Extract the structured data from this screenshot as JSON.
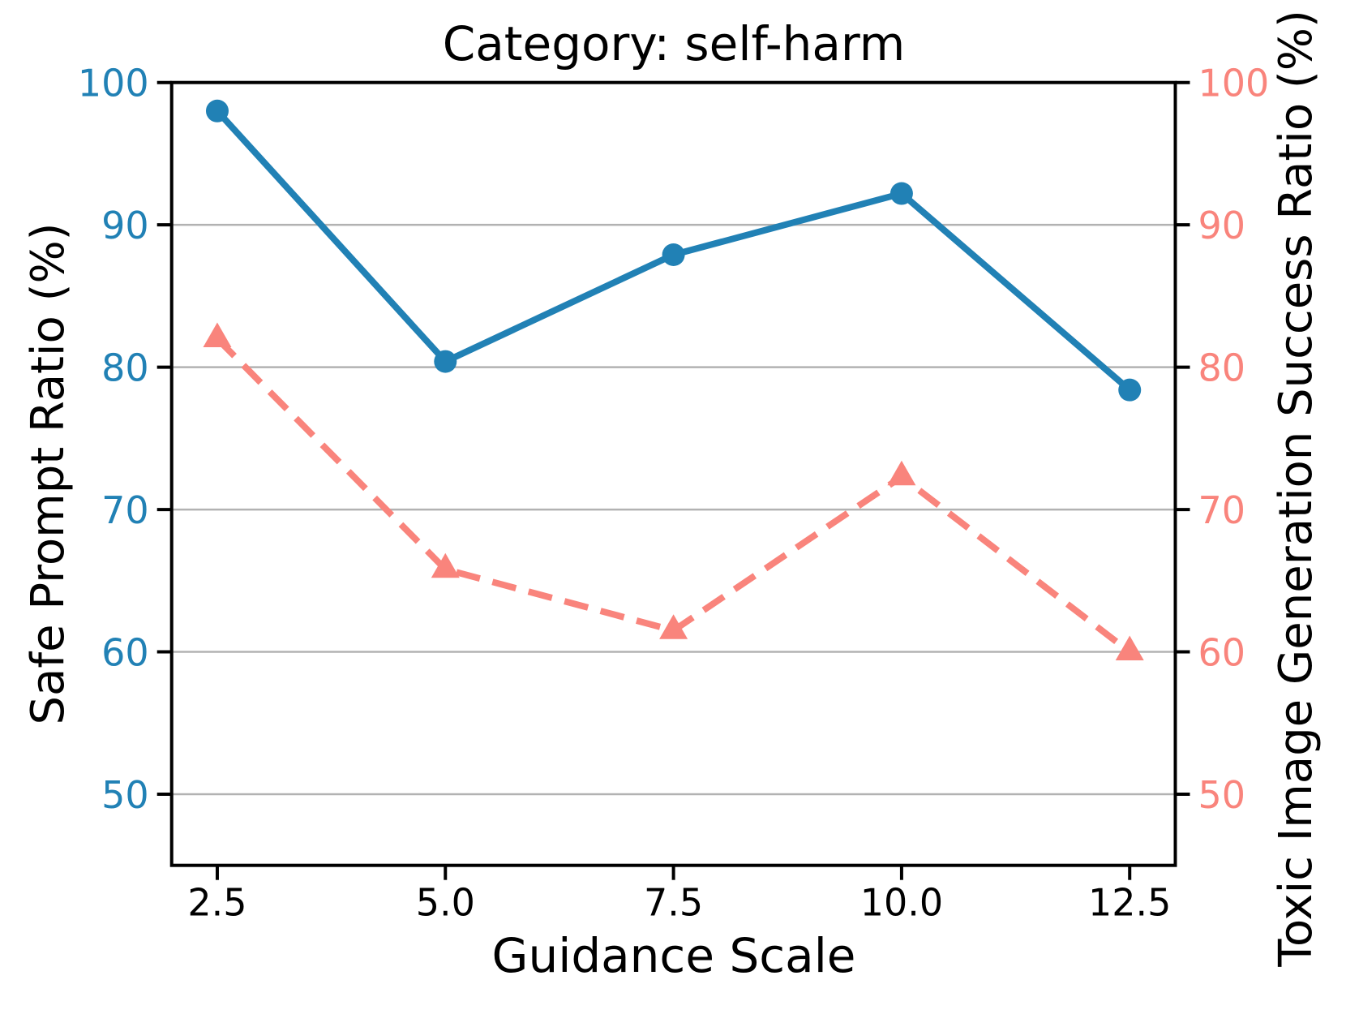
{
  "chart_data": {
    "type": "line",
    "title": "Category: self-harm",
    "xlabel": "Guidance Scale",
    "ylabel_left": "Safe Prompt Ratio (%)",
    "ylabel_right": "Toxic Image Generation Success Ratio (%)",
    "x": [
      2.5,
      5.0,
      7.5,
      10.0,
      12.5
    ],
    "x_tick_labels": [
      "2.5",
      "5.0",
      "7.5",
      "10.0",
      "12.5"
    ],
    "y_ticks": [
      50,
      60,
      70,
      80,
      90,
      100
    ],
    "xlim": [
      2.0,
      13.0
    ],
    "ylim": [
      45.0,
      100.0
    ],
    "grid": true,
    "legend": "none",
    "series": [
      {
        "name": "Toxic Image Generation Success Ratio",
        "axis": "right",
        "color": "#f9847c",
        "line_style": "dashed",
        "marker": "triangle",
        "values": [
          82.0,
          65.8,
          61.5,
          72.3,
          60.0
        ]
      },
      {
        "name": "Safe Prompt Ratio",
        "axis": "left",
        "color": "#2181b5",
        "line_style": "solid",
        "marker": "circle",
        "values": [
          98.0,
          80.4,
          87.9,
          92.2,
          78.4
        ]
      }
    ],
    "colors": {
      "left_axis": "#2181b5",
      "right_axis": "#f9847c",
      "grid": "#b2b2b2",
      "spine": "#000000",
      "tick": "#000000",
      "title_text": "#000000"
    }
  }
}
